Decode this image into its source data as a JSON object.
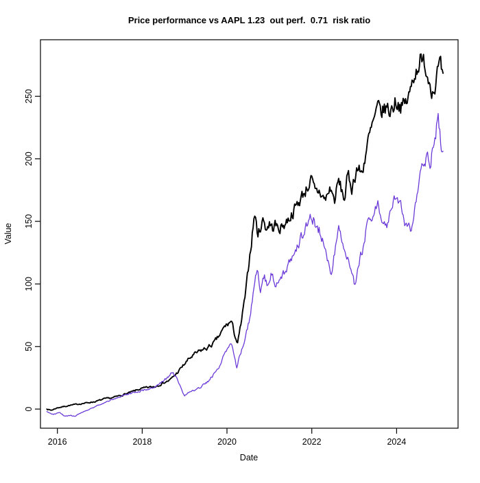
{
  "chart_data": {
    "type": "line",
    "title": "Price performance vs AAPL 1.23  out perf.  0.71  risk ratio",
    "xlabel": "Date",
    "ylabel": "Value",
    "x_ticks": [
      2016,
      2018,
      2020,
      2022,
      2024
    ],
    "y_ticks": [
      0,
      50,
      100,
      150,
      200,
      250
    ],
    "xlim": [
      2015.6,
      2025.45
    ],
    "ylim": [
      -15.3,
      295.2
    ],
    "grid": false,
    "legend": "none",
    "background_color": "#ffffff",
    "axis_color": "#000000",
    "stats": {
      "benchmark": "AAPL",
      "outperformance": 1.23,
      "risk_ratio": 0.71
    },
    "noise": {
      "seed": 7,
      "ar": 0.5,
      "amp_base": 0.3,
      "amp_scale": 0.025,
      "steps_per_year": 52
    },
    "series": [
      {
        "name": "Price",
        "color": "#000000",
        "line_width": 1.9,
        "points": [
          [
            2015.75,
            0
          ],
          [
            2015.85,
            -1
          ],
          [
            2016.0,
            1
          ],
          [
            2016.15,
            2
          ],
          [
            2016.3,
            3
          ],
          [
            2016.5,
            4
          ],
          [
            2016.7,
            5
          ],
          [
            2016.9,
            6
          ],
          [
            2017.1,
            8
          ],
          [
            2017.3,
            9
          ],
          [
            2017.5,
            11
          ],
          [
            2017.7,
            13
          ],
          [
            2017.95,
            16
          ],
          [
            2018.1,
            17
          ],
          [
            2018.3,
            18
          ],
          [
            2018.5,
            21
          ],
          [
            2018.65,
            23
          ],
          [
            2018.8,
            28
          ],
          [
            2018.95,
            34
          ],
          [
            2019.1,
            40
          ],
          [
            2019.25,
            44
          ],
          [
            2019.4,
            47
          ],
          [
            2019.55,
            49
          ],
          [
            2019.7,
            53
          ],
          [
            2019.85,
            60
          ],
          [
            2019.95,
            66
          ],
          [
            2020.1,
            70
          ],
          [
            2020.18,
            60
          ],
          [
            2020.25,
            52
          ],
          [
            2020.35,
            72
          ],
          [
            2020.45,
            95
          ],
          [
            2020.52,
            118
          ],
          [
            2020.58,
            135
          ],
          [
            2020.65,
            157
          ],
          [
            2020.73,
            139
          ],
          [
            2020.8,
            147
          ],
          [
            2020.86,
            152
          ],
          [
            2020.93,
            144
          ],
          [
            2021.0,
            149
          ],
          [
            2021.07,
            144
          ],
          [
            2021.13,
            148
          ],
          [
            2021.2,
            144
          ],
          [
            2021.3,
            146
          ],
          [
            2021.45,
            152
          ],
          [
            2021.6,
            160
          ],
          [
            2021.7,
            166
          ],
          [
            2021.8,
            172
          ],
          [
            2021.9,
            178
          ],
          [
            2021.98,
            183
          ],
          [
            2022.08,
            172
          ],
          [
            2022.18,
            174
          ],
          [
            2022.31,
            167
          ],
          [
            2022.45,
            177
          ],
          [
            2022.53,
            166
          ],
          [
            2022.63,
            182
          ],
          [
            2022.7,
            175
          ],
          [
            2022.77,
            168
          ],
          [
            2022.85,
            186
          ],
          [
            2022.95,
            177
          ],
          [
            2023.06,
            193
          ],
          [
            2023.18,
            188
          ],
          [
            2023.3,
            210
          ],
          [
            2023.45,
            228
          ],
          [
            2023.55,
            239
          ],
          [
            2023.65,
            237
          ],
          [
            2023.75,
            241
          ],
          [
            2023.85,
            238
          ],
          [
            2023.98,
            247
          ],
          [
            2024.08,
            244
          ],
          [
            2024.14,
            241
          ],
          [
            2024.23,
            245
          ],
          [
            2024.32,
            252
          ],
          [
            2024.4,
            268
          ],
          [
            2024.48,
            272
          ],
          [
            2024.55,
            282
          ],
          [
            2024.6,
            272
          ],
          [
            2024.66,
            278
          ],
          [
            2024.73,
            268
          ],
          [
            2024.79,
            263
          ],
          [
            2024.87,
            255
          ],
          [
            2024.93,
            264
          ],
          [
            2025.0,
            273
          ],
          [
            2025.05,
            270
          ],
          [
            2025.11,
            258
          ]
        ]
      },
      {
        "name": "AAPL",
        "color": "#6B3AD8",
        "line_width": 1.3,
        "points": [
          [
            2015.75,
            -2
          ],
          [
            2015.9,
            -4
          ],
          [
            2016.05,
            -3
          ],
          [
            2016.18,
            -6
          ],
          [
            2016.3,
            -5
          ],
          [
            2016.4,
            -6
          ],
          [
            2016.55,
            -3
          ],
          [
            2016.7,
            -1
          ],
          [
            2016.9,
            2
          ],
          [
            2017.1,
            5
          ],
          [
            2017.3,
            8
          ],
          [
            2017.5,
            10
          ],
          [
            2017.7,
            12
          ],
          [
            2017.95,
            14
          ],
          [
            2018.15,
            16
          ],
          [
            2018.3,
            18
          ],
          [
            2018.45,
            21
          ],
          [
            2018.6,
            25
          ],
          [
            2018.71,
            30
          ],
          [
            2018.8,
            26
          ],
          [
            2018.9,
            18
          ],
          [
            2019.0,
            10
          ],
          [
            2019.1,
            13
          ],
          [
            2019.25,
            15
          ],
          [
            2019.4,
            18
          ],
          [
            2019.55,
            22
          ],
          [
            2019.7,
            28
          ],
          [
            2019.85,
            36
          ],
          [
            2019.95,
            44
          ],
          [
            2020.08,
            54
          ],
          [
            2020.16,
            44
          ],
          [
            2020.23,
            34
          ],
          [
            2020.32,
            45
          ],
          [
            2020.42,
            57
          ],
          [
            2020.52,
            70
          ],
          [
            2020.6,
            88
          ],
          [
            2020.67,
            108
          ],
          [
            2020.72,
            112
          ],
          [
            2020.78,
            93
          ],
          [
            2020.88,
            106
          ],
          [
            2020.95,
            100
          ],
          [
            2021.05,
            108
          ],
          [
            2021.13,
            101
          ],
          [
            2021.3,
            107
          ],
          [
            2021.4,
            112
          ],
          [
            2021.55,
            122
          ],
          [
            2021.66,
            130
          ],
          [
            2021.8,
            140
          ],
          [
            2021.9,
            147
          ],
          [
            2021.98,
            155
          ],
          [
            2022.08,
            149
          ],
          [
            2022.21,
            141
          ],
          [
            2022.3,
            132
          ],
          [
            2022.4,
            118
          ],
          [
            2022.47,
            108
          ],
          [
            2022.55,
            128
          ],
          [
            2022.63,
            146
          ],
          [
            2022.7,
            138
          ],
          [
            2022.78,
            128
          ],
          [
            2022.85,
            119
          ],
          [
            2022.93,
            110
          ],
          [
            2023.02,
            99
          ],
          [
            2023.1,
            112
          ],
          [
            2023.2,
            128
          ],
          [
            2023.27,
            141
          ],
          [
            2023.4,
            152
          ],
          [
            2023.5,
            163
          ],
          [
            2023.55,
            168
          ],
          [
            2023.62,
            158
          ],
          [
            2023.7,
            152
          ],
          [
            2023.76,
            148
          ],
          [
            2023.85,
            158
          ],
          [
            2023.95,
            171
          ],
          [
            2024.05,
            165
          ],
          [
            2024.12,
            160
          ],
          [
            2024.2,
            150
          ],
          [
            2024.27,
            146
          ],
          [
            2024.32,
            142
          ],
          [
            2024.4,
            155
          ],
          [
            2024.47,
            168
          ],
          [
            2024.55,
            184
          ],
          [
            2024.62,
            193
          ],
          [
            2024.68,
            201
          ],
          [
            2024.72,
            206
          ],
          [
            2024.79,
            196
          ],
          [
            2024.86,
            208
          ],
          [
            2024.92,
            216
          ],
          [
            2024.97,
            232
          ],
          [
            2025.02,
            220
          ],
          [
            2025.06,
            199
          ],
          [
            2025.11,
            210
          ]
        ]
      }
    ]
  }
}
